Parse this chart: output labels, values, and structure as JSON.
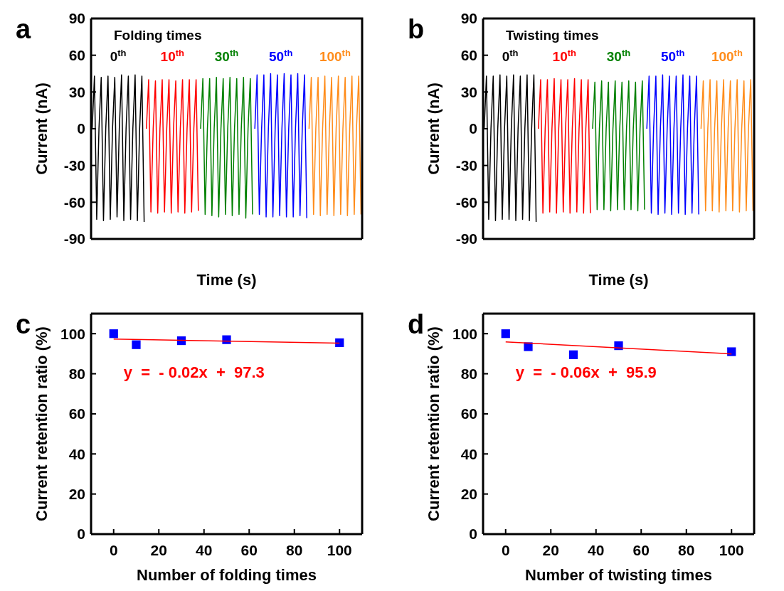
{
  "chart_data": [
    {
      "type": "line",
      "title": "a",
      "xlabel": "Time (s)",
      "ylabel": "Current (nA)",
      "legend": "top",
      "legend_title": "Folding times",
      "tick_labels": "y",
      "ylim": [
        -90,
        90
      ],
      "yticks": [
        -90,
        -60,
        -30,
        0,
        30,
        60,
        90
      ],
      "categories": [
        null,
        null,
        null,
        null,
        null,
        null,
        null,
        null,
        null,
        null,
        null,
        null,
        null,
        null,
        null,
        null,
        null,
        null,
        null,
        null,
        null,
        null,
        null,
        null,
        null,
        null,
        null,
        null,
        null,
        null,
        null,
        null,
        null,
        null,
        null,
        null,
        null,
        null,
        null,
        null,
        null,
        null,
        null,
        null,
        null,
        null,
        null,
        null,
        null,
        null,
        null,
        null,
        null,
        null,
        null,
        null,
        null,
        null,
        null,
        null,
        null,
        null,
        null,
        null,
        null,
        null,
        null,
        null,
        null,
        null,
        null,
        null,
        null,
        null,
        null,
        null,
        null,
        null,
        null,
        null,
        null,
        null,
        null,
        null,
        null,
        null,
        null,
        null,
        null,
        null,
        null,
        null,
        null,
        null,
        null,
        null,
        null,
        null,
        null,
        null,
        null,
        null,
        null,
        null,
        null,
        null,
        null,
        null,
        null,
        null,
        null,
        null,
        null,
        null,
        null,
        null,
        null,
        null,
        null,
        null
      ],
      "series": [
        {
          "name": "0$^{th}$",
          "color": "#000000",
          "values": [
            0,
            43,
            -74,
            0,
            42,
            -75,
            0,
            43,
            -74,
            0,
            42,
            -72,
            0,
            44,
            -75,
            0,
            43,
            -74,
            0,
            44,
            -75,
            0,
            43,
            -76,
            null,
            null,
            null,
            null,
            null,
            null,
            null,
            null,
            null,
            null,
            null,
            null,
            null,
            null,
            null,
            null,
            null,
            null,
            null,
            null,
            null,
            null,
            null,
            null,
            null,
            null,
            null,
            null,
            null,
            null,
            null,
            null,
            null,
            null,
            null,
            null,
            null,
            null,
            null,
            null,
            null,
            null,
            null,
            null,
            null,
            null,
            null,
            null,
            null,
            null,
            null,
            null,
            null,
            null,
            null,
            null,
            null,
            null,
            null,
            null,
            null,
            null,
            null,
            null,
            null,
            null,
            null,
            null,
            null,
            null,
            null,
            null,
            null,
            null,
            null,
            null,
            null,
            null,
            null,
            null,
            null,
            null,
            null,
            null,
            null,
            null,
            null,
            null,
            null,
            null,
            null,
            null,
            null,
            null,
            null,
            null
          ]
        },
        {
          "name": "10$^{th}$",
          "color": "#ff0000",
          "values": [
            null,
            null,
            null,
            null,
            null,
            null,
            null,
            null,
            null,
            null,
            null,
            null,
            null,
            null,
            null,
            null,
            null,
            null,
            null,
            null,
            null,
            null,
            null,
            null,
            0,
            40,
            -68,
            0,
            39,
            -69,
            0,
            40,
            -68,
            0,
            40,
            -69,
            0,
            39,
            -68,
            0,
            40,
            -69,
            0,
            40,
            -68,
            0,
            40,
            -67,
            null,
            null,
            null,
            null,
            null,
            null,
            null,
            null,
            null,
            null,
            null,
            null,
            null,
            null,
            null,
            null,
            null,
            null,
            null,
            null,
            null,
            null,
            null,
            null,
            null,
            null,
            null,
            null,
            null,
            null,
            null,
            null,
            null,
            null,
            null,
            null,
            null,
            null,
            null,
            null,
            null,
            null,
            null,
            null,
            null,
            null,
            null,
            null,
            null,
            null,
            null,
            null,
            null,
            null,
            null,
            null,
            null,
            null,
            null,
            null,
            null,
            null,
            null,
            null,
            null,
            null,
            null,
            null,
            null,
            null,
            null,
            null
          ]
        },
        {
          "name": "30$^{th}$",
          "color": "#008000",
          "values": [
            null,
            null,
            null,
            null,
            null,
            null,
            null,
            null,
            null,
            null,
            null,
            null,
            null,
            null,
            null,
            null,
            null,
            null,
            null,
            null,
            null,
            null,
            null,
            null,
            null,
            null,
            null,
            null,
            null,
            null,
            null,
            null,
            null,
            null,
            null,
            null,
            null,
            null,
            null,
            null,
            null,
            null,
            null,
            null,
            null,
            null,
            null,
            null,
            0,
            41,
            -70,
            0,
            41,
            -71,
            0,
            42,
            -72,
            0,
            41,
            -70,
            0,
            42,
            -71,
            0,
            41,
            -70,
            0,
            42,
            -73,
            0,
            41,
            -70,
            null,
            null,
            null,
            null,
            null,
            null,
            null,
            null,
            null,
            null,
            null,
            null,
            null,
            null,
            null,
            null,
            null,
            null,
            null,
            null,
            null,
            null,
            null,
            null,
            null,
            null,
            null,
            null,
            null,
            null,
            null,
            null,
            null,
            null,
            null,
            null,
            null,
            null,
            null,
            null,
            null,
            null,
            null,
            null,
            null,
            null,
            null,
            null
          ]
        },
        {
          "name": "50$^{th}$",
          "color": "#0000ff",
          "values": [
            null,
            null,
            null,
            null,
            null,
            null,
            null,
            null,
            null,
            null,
            null,
            null,
            null,
            null,
            null,
            null,
            null,
            null,
            null,
            null,
            null,
            null,
            null,
            null,
            null,
            null,
            null,
            null,
            null,
            null,
            null,
            null,
            null,
            null,
            null,
            null,
            null,
            null,
            null,
            null,
            null,
            null,
            null,
            null,
            null,
            null,
            null,
            null,
            null,
            null,
            null,
            null,
            null,
            null,
            null,
            null,
            null,
            null,
            null,
            null,
            null,
            null,
            null,
            null,
            null,
            null,
            null,
            null,
            null,
            null,
            null,
            null,
            0,
            44,
            -70,
            0,
            44,
            -72,
            0,
            45,
            -72,
            0,
            44,
            -71,
            0,
            45,
            -72,
            0,
            44,
            -72,
            0,
            45,
            -71,
            0,
            44,
            -73,
            null,
            null,
            null,
            null,
            null,
            null,
            null,
            null,
            null,
            null,
            null,
            null,
            null,
            null,
            null,
            null,
            null,
            null,
            null,
            null,
            null,
            null,
            null,
            null
          ]
        },
        {
          "name": "100$^{th}$",
          "color": "#ff8c1a",
          "values": [
            null,
            null,
            null,
            null,
            null,
            null,
            null,
            null,
            null,
            null,
            null,
            null,
            null,
            null,
            null,
            null,
            null,
            null,
            null,
            null,
            null,
            null,
            null,
            null,
            null,
            null,
            null,
            null,
            null,
            null,
            null,
            null,
            null,
            null,
            null,
            null,
            null,
            null,
            null,
            null,
            null,
            null,
            null,
            null,
            null,
            null,
            null,
            null,
            null,
            null,
            null,
            null,
            null,
            null,
            null,
            null,
            null,
            null,
            null,
            null,
            null,
            null,
            null,
            null,
            null,
            null,
            null,
            null,
            null,
            null,
            null,
            null,
            null,
            null,
            null,
            null,
            null,
            null,
            null,
            null,
            null,
            null,
            null,
            null,
            null,
            null,
            null,
            null,
            null,
            null,
            null,
            null,
            null,
            null,
            null,
            null,
            0,
            42,
            -70,
            0,
            42,
            -71,
            0,
            43,
            -70,
            0,
            42,
            -71,
            0,
            43,
            -70,
            0,
            42,
            -71,
            0,
            43,
            -70,
            0,
            43,
            -70
          ]
        }
      ]
    },
    {
      "type": "line",
      "title": "b",
      "xlabel": "Time (s)",
      "ylabel": "Current (nA)",
      "legend": "top",
      "legend_title": "Twisting times",
      "tick_labels": "y",
      "ylim": [
        -90,
        90
      ],
      "yticks": [
        -90,
        -60,
        -30,
        0,
        30,
        60,
        90
      ],
      "categories": [
        null,
        null,
        null,
        null,
        null,
        null,
        null,
        null,
        null,
        null,
        null,
        null,
        null,
        null,
        null,
        null,
        null,
        null,
        null,
        null,
        null,
        null,
        null,
        null,
        null,
        null,
        null,
        null,
        null,
        null,
        null,
        null,
        null,
        null,
        null,
        null,
        null,
        null,
        null,
        null,
        null,
        null,
        null,
        null,
        null,
        null,
        null,
        null,
        null,
        null,
        null,
        null,
        null,
        null,
        null,
        null,
        null,
        null,
        null,
        null,
        null,
        null,
        null,
        null,
        null,
        null,
        null,
        null,
        null,
        null,
        null,
        null,
        null,
        null,
        null,
        null,
        null,
        null,
        null,
        null,
        null,
        null,
        null,
        null,
        null,
        null,
        null,
        null,
        null,
        null,
        null,
        null,
        null,
        null,
        null,
        null,
        null,
        null,
        null,
        null,
        null,
        null,
        null,
        null,
        null,
        null,
        null,
        null,
        null,
        null,
        null,
        null,
        null,
        null,
        null,
        null,
        null,
        null,
        null,
        null
      ],
      "series": [
        {
          "name": "0$^{th}$",
          "color": "#000000",
          "values": [
            0,
            43,
            -74,
            0,
            43,
            -75,
            0,
            44,
            -74,
            0,
            43,
            -74,
            0,
            44,
            -75,
            0,
            43,
            -74,
            0,
            44,
            -75,
            0,
            44,
            -76,
            null,
            null,
            null,
            null,
            null,
            null,
            null,
            null,
            null,
            null,
            null,
            null,
            null,
            null,
            null,
            null,
            null,
            null,
            null,
            null,
            null,
            null,
            null,
            null,
            null,
            null,
            null,
            null,
            null,
            null,
            null,
            null,
            null,
            null,
            null,
            null,
            null,
            null,
            null,
            null,
            null,
            null,
            null,
            null,
            null,
            null,
            null,
            null,
            null,
            null,
            null,
            null,
            null,
            null,
            null,
            null,
            null,
            null,
            null,
            null,
            null,
            null,
            null,
            null,
            null,
            null,
            null,
            null,
            null,
            null,
            null,
            null,
            null,
            null,
            null,
            null,
            null,
            null,
            null,
            null,
            null,
            null,
            null,
            null,
            null,
            null,
            null,
            null,
            null,
            null,
            null,
            null,
            null,
            null,
            null,
            null
          ]
        },
        {
          "name": "10$^{th}$",
          "color": "#ff0000",
          "values": [
            null,
            null,
            null,
            null,
            null,
            null,
            null,
            null,
            null,
            null,
            null,
            null,
            null,
            null,
            null,
            null,
            null,
            null,
            null,
            null,
            null,
            null,
            null,
            null,
            0,
            40,
            -69,
            0,
            40,
            -68,
            0,
            41,
            -69,
            0,
            40,
            -68,
            0,
            40,
            -69,
            0,
            41,
            -68,
            0,
            40,
            -69,
            0,
            40,
            -69,
            null,
            null,
            null,
            null,
            null,
            null,
            null,
            null,
            null,
            null,
            null,
            null,
            null,
            null,
            null,
            null,
            null,
            null,
            null,
            null,
            null,
            null,
            null,
            null,
            null,
            null,
            null,
            null,
            null,
            null,
            null,
            null,
            null,
            null,
            null,
            null,
            null,
            null,
            null,
            null,
            null,
            null,
            null,
            null,
            null,
            null,
            null,
            null,
            null,
            null,
            null,
            null,
            null,
            null,
            null,
            null,
            null,
            null,
            null,
            null,
            null,
            null,
            null,
            null,
            null,
            null,
            null,
            null,
            null,
            null,
            null,
            null
          ]
        },
        {
          "name": "30$^{th}$",
          "color": "#008000",
          "values": [
            null,
            null,
            null,
            null,
            null,
            null,
            null,
            null,
            null,
            null,
            null,
            null,
            null,
            null,
            null,
            null,
            null,
            null,
            null,
            null,
            null,
            null,
            null,
            null,
            null,
            null,
            null,
            null,
            null,
            null,
            null,
            null,
            null,
            null,
            null,
            null,
            null,
            null,
            null,
            null,
            null,
            null,
            null,
            null,
            null,
            null,
            null,
            null,
            0,
            38,
            -66,
            0,
            39,
            -66,
            0,
            38,
            -67,
            0,
            39,
            -66,
            0,
            38,
            -66,
            0,
            39,
            -66,
            0,
            38,
            -67,
            0,
            39,
            -66,
            null,
            null,
            null,
            null,
            null,
            null,
            null,
            null,
            null,
            null,
            null,
            null,
            null,
            null,
            null,
            null,
            null,
            null,
            null,
            null,
            null,
            null,
            null,
            null,
            null,
            null,
            null,
            null,
            null,
            null,
            null,
            null,
            null,
            null,
            null,
            null,
            null,
            null,
            null,
            null,
            null,
            null,
            null,
            null,
            null,
            null,
            null,
            null
          ]
        },
        {
          "name": "50$^{th}$",
          "color": "#0000ff",
          "values": [
            null,
            null,
            null,
            null,
            null,
            null,
            null,
            null,
            null,
            null,
            null,
            null,
            null,
            null,
            null,
            null,
            null,
            null,
            null,
            null,
            null,
            null,
            null,
            null,
            null,
            null,
            null,
            null,
            null,
            null,
            null,
            null,
            null,
            null,
            null,
            null,
            null,
            null,
            null,
            null,
            null,
            null,
            null,
            null,
            null,
            null,
            null,
            null,
            null,
            null,
            null,
            null,
            null,
            null,
            null,
            null,
            null,
            null,
            null,
            null,
            null,
            null,
            null,
            null,
            null,
            null,
            null,
            null,
            null,
            null,
            null,
            null,
            0,
            43,
            -69,
            0,
            43,
            -70,
            0,
            44,
            -69,
            0,
            43,
            -70,
            0,
            43,
            -69,
            0,
            44,
            -70,
            0,
            43,
            -69,
            0,
            43,
            -70,
            null,
            null,
            null,
            null,
            null,
            null,
            null,
            null,
            null,
            null,
            null,
            null,
            null,
            null,
            null,
            null,
            null,
            null,
            null,
            null,
            null,
            null,
            null,
            null
          ]
        },
        {
          "name": "100$^{th}$",
          "color": "#ff8c1a",
          "values": [
            null,
            null,
            null,
            null,
            null,
            null,
            null,
            null,
            null,
            null,
            null,
            null,
            null,
            null,
            null,
            null,
            null,
            null,
            null,
            null,
            null,
            null,
            null,
            null,
            null,
            null,
            null,
            null,
            null,
            null,
            null,
            null,
            null,
            null,
            null,
            null,
            null,
            null,
            null,
            null,
            null,
            null,
            null,
            null,
            null,
            null,
            null,
            null,
            null,
            null,
            null,
            null,
            null,
            null,
            null,
            null,
            null,
            null,
            null,
            null,
            null,
            null,
            null,
            null,
            null,
            null,
            null,
            null,
            null,
            null,
            null,
            null,
            null,
            null,
            null,
            null,
            null,
            null,
            null,
            null,
            null,
            null,
            null,
            null,
            null,
            null,
            null,
            null,
            null,
            null,
            null,
            null,
            null,
            null,
            null,
            null,
            0,
            39,
            -67,
            0,
            40,
            -67,
            0,
            39,
            -68,
            0,
            40,
            -67,
            0,
            39,
            -67,
            0,
            40,
            -68,
            0,
            39,
            -67,
            0,
            40,
            -67
          ]
        }
      ]
    },
    {
      "type": "scatter",
      "title": "c",
      "xlabel": "Number of folding times",
      "ylabel": "Current retention ratio (%)",
      "xlim": [
        -10,
        110
      ],
      "xticks": [
        0,
        20,
        40,
        60,
        80,
        100
      ],
      "ylim": [
        0,
        110
      ],
      "yticks": [
        0,
        20,
        40,
        60,
        80,
        100
      ],
      "annotations": [
        "y  =  - 0.02x  +  97.3"
      ],
      "series": [
        {
          "color": "#0000ff",
          "marker": "square",
          "x": [
            0,
            10,
            30,
            50,
            100
          ],
          "values": [
            100,
            94.5,
            96.5,
            97,
            95.5
          ]
        },
        {
          "type": "line",
          "color": "#ff0000",
          "x": [
            0,
            100
          ],
          "values": [
            97.3,
            95.3
          ]
        }
      ]
    },
    {
      "type": "scatter",
      "title": "d",
      "xlabel": "Number of twisting times",
      "ylabel": "Current retention ratio (%)",
      "xlim": [
        -10,
        110
      ],
      "xticks": [
        0,
        20,
        40,
        60,
        80,
        100
      ],
      "ylim": [
        0,
        110
      ],
      "yticks": [
        0,
        20,
        40,
        60,
        80,
        100
      ],
      "annotations": [
        "y  =  - 0.06x  +  95.9"
      ],
      "series": [
        {
          "color": "#0000ff",
          "marker": "square",
          "x": [
            0,
            10,
            30,
            50,
            100
          ],
          "values": [
            100,
            93.5,
            89.5,
            94,
            91
          ]
        },
        {
          "type": "line",
          "color": "#ff0000",
          "x": [
            0,
            100
          ],
          "values": [
            95.9,
            89.9
          ]
        }
      ]
    }
  ]
}
